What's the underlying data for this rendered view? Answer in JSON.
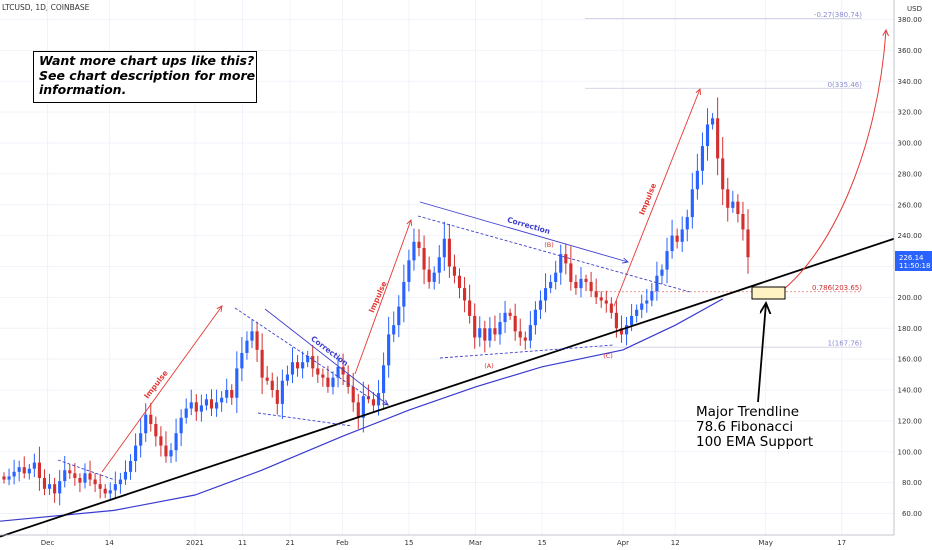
{
  "header": {
    "symbol": "LTCUSD, 1D, COINBASE",
    "currency": "USD"
  },
  "callout": {
    "lines": [
      "Want more chart ups like this?",
      "See chart description for more",
      "information."
    ]
  },
  "support_note": {
    "lines": [
      "Major Trendline",
      "78.6 Fibonacci",
      "100 EMA Support"
    ]
  },
  "price_badge": {
    "price": "226.14",
    "time": "11:50:18",
    "color": "#2962ff"
  },
  "colors": {
    "up": "#2962ff",
    "down": "#d32f2f",
    "ema": "#3a3ad0",
    "trendline": "#000000",
    "annotation_up": "#e53935",
    "annotation_corr": "#3f3fcf",
    "fib": "#8a8ad0"
  },
  "fib_levels": [
    {
      "label": "-0.27(380.74)",
      "price": 380.74
    },
    {
      "label": "0(335.46)",
      "price": 335.46
    },
    {
      "label": "0.786(203.65)",
      "price": 203.65
    },
    {
      "label": "1(167.76)",
      "price": 167.76
    }
  ],
  "annotations": {
    "impulse": "Impulse",
    "correction": "Correction",
    "wave_a": "(A)",
    "wave_b": "(B)",
    "wave_c": "(C)"
  },
  "chart_data": {
    "type": "candlestick",
    "title": "LTCUSD, 1D, COINBASE",
    "ylim": [
      48,
      390
    ],
    "y_ticks": [
      60,
      80,
      100,
      120,
      140,
      160,
      180,
      200,
      220,
      240,
      260,
      280,
      300,
      320,
      340,
      360,
      380
    ],
    "x_ticks": [
      "Dec",
      "14",
      "2021",
      "11",
      "21",
      "Feb",
      "15",
      "Mar",
      "15",
      "Apr",
      "12",
      "May",
      "17"
    ],
    "x_tick_dates": [
      "2020-12-01",
      "2020-12-14",
      "2021-01-01",
      "2021-01-11",
      "2021-01-21",
      "2021-02-01",
      "2021-02-15",
      "2021-03-01",
      "2021-03-15",
      "2021-04-01",
      "2021-04-12",
      "2021-05-01",
      "2021-05-17"
    ],
    "x_range": [
      "2020-11-21",
      "2021-05-28"
    ],
    "closes": [
      82,
      84,
      87,
      90,
      86,
      89,
      93,
      83,
      76,
      79,
      73,
      81,
      88,
      86,
      83,
      80,
      86,
      82,
      79,
      76,
      73,
      75,
      79,
      82,
      87,
      94,
      104,
      112,
      124,
      118,
      110,
      104,
      97,
      101,
      112,
      122,
      128,
      132,
      126,
      130,
      134,
      128,
      132,
      135,
      140,
      135,
      154,
      164,
      172,
      178,
      166,
      148,
      146,
      140,
      131,
      146,
      150,
      158,
      154,
      158,
      162,
      154,
      150,
      148,
      142,
      148,
      155,
      150,
      142,
      132,
      122,
      136,
      134,
      130,
      138,
      156,
      176,
      182,
      194,
      210,
      224,
      236,
      232,
      218,
      210,
      216,
      226,
      238,
      220,
      214,
      206,
      198,
      188,
      174,
      180,
      172,
      180,
      176,
      184,
      190,
      188,
      178,
      174,
      172,
      182,
      192,
      198,
      206,
      210,
      216,
      228,
      222,
      210,
      206,
      212,
      210,
      204,
      200,
      198,
      196,
      190,
      180,
      176,
      182,
      188,
      192,
      196,
      198,
      204,
      214,
      218,
      230,
      240,
      236,
      244,
      252,
      270,
      282,
      298,
      312,
      316,
      290,
      270,
      258,
      262,
      254,
      244,
      226
    ],
    "ema": {
      "name": "100 EMA",
      "points": [
        [
          "2020-11-21",
          55
        ],
        [
          "2020-12-15",
          62
        ],
        [
          "2021-01-01",
          72
        ],
        [
          "2021-01-15",
          88
        ],
        [
          "2021-02-01",
          110
        ],
        [
          "2021-02-15",
          127
        ],
        [
          "2021-03-01",
          142
        ],
        [
          "2021-03-15",
          155
        ],
        [
          "2021-04-01",
          166
        ],
        [
          "2021-04-12",
          182
        ],
        [
          "2021-04-22",
          199
        ]
      ]
    },
    "trendline": {
      "name": "Major Trendline",
      "points": [
        [
          "2020-11-21",
          45
        ],
        [
          "2021-05-28",
          238
        ]
      ]
    }
  }
}
